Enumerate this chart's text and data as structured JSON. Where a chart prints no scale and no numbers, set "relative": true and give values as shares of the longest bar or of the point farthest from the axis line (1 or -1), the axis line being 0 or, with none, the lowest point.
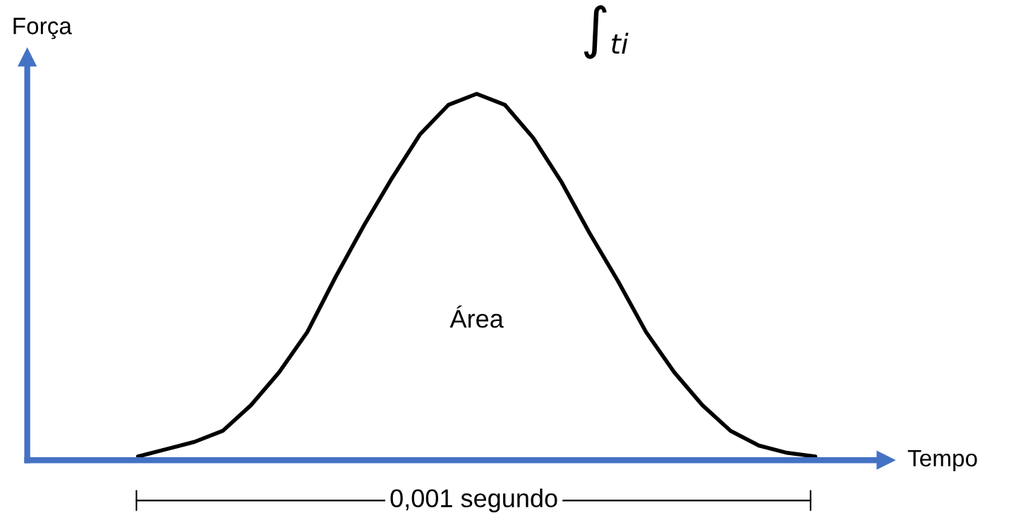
{
  "chart_data": {
    "type": "line",
    "relative": true,
    "xlabel": "Tempo",
    "ylabel": "Força",
    "categories": [
      null,
      null,
      null,
      null,
      null,
      null,
      null,
      null,
      null,
      null,
      null,
      null,
      null,
      null,
      null,
      null,
      null,
      null,
      null,
      null,
      null,
      null,
      null,
      null,
      null
    ],
    "series": [
      {
        "color": "#000000",
        "values": [
          0.01,
          0.03,
          0.05,
          0.08,
          0.15,
          0.24,
          0.35,
          0.5,
          0.64,
          0.77,
          0.89,
          0.97,
          1.0,
          0.97,
          0.88,
          0.76,
          0.62,
          0.49,
          0.35,
          0.24,
          0.15,
          0.08,
          0.04,
          0.02,
          0.01
        ]
      }
    ],
    "annotations": [
      "∫$_{ti}$",
      "Área",
      "0,001 segundo"
    ],
    "legend": false,
    "marker": "none",
    "line_style": "solid"
  }
}
